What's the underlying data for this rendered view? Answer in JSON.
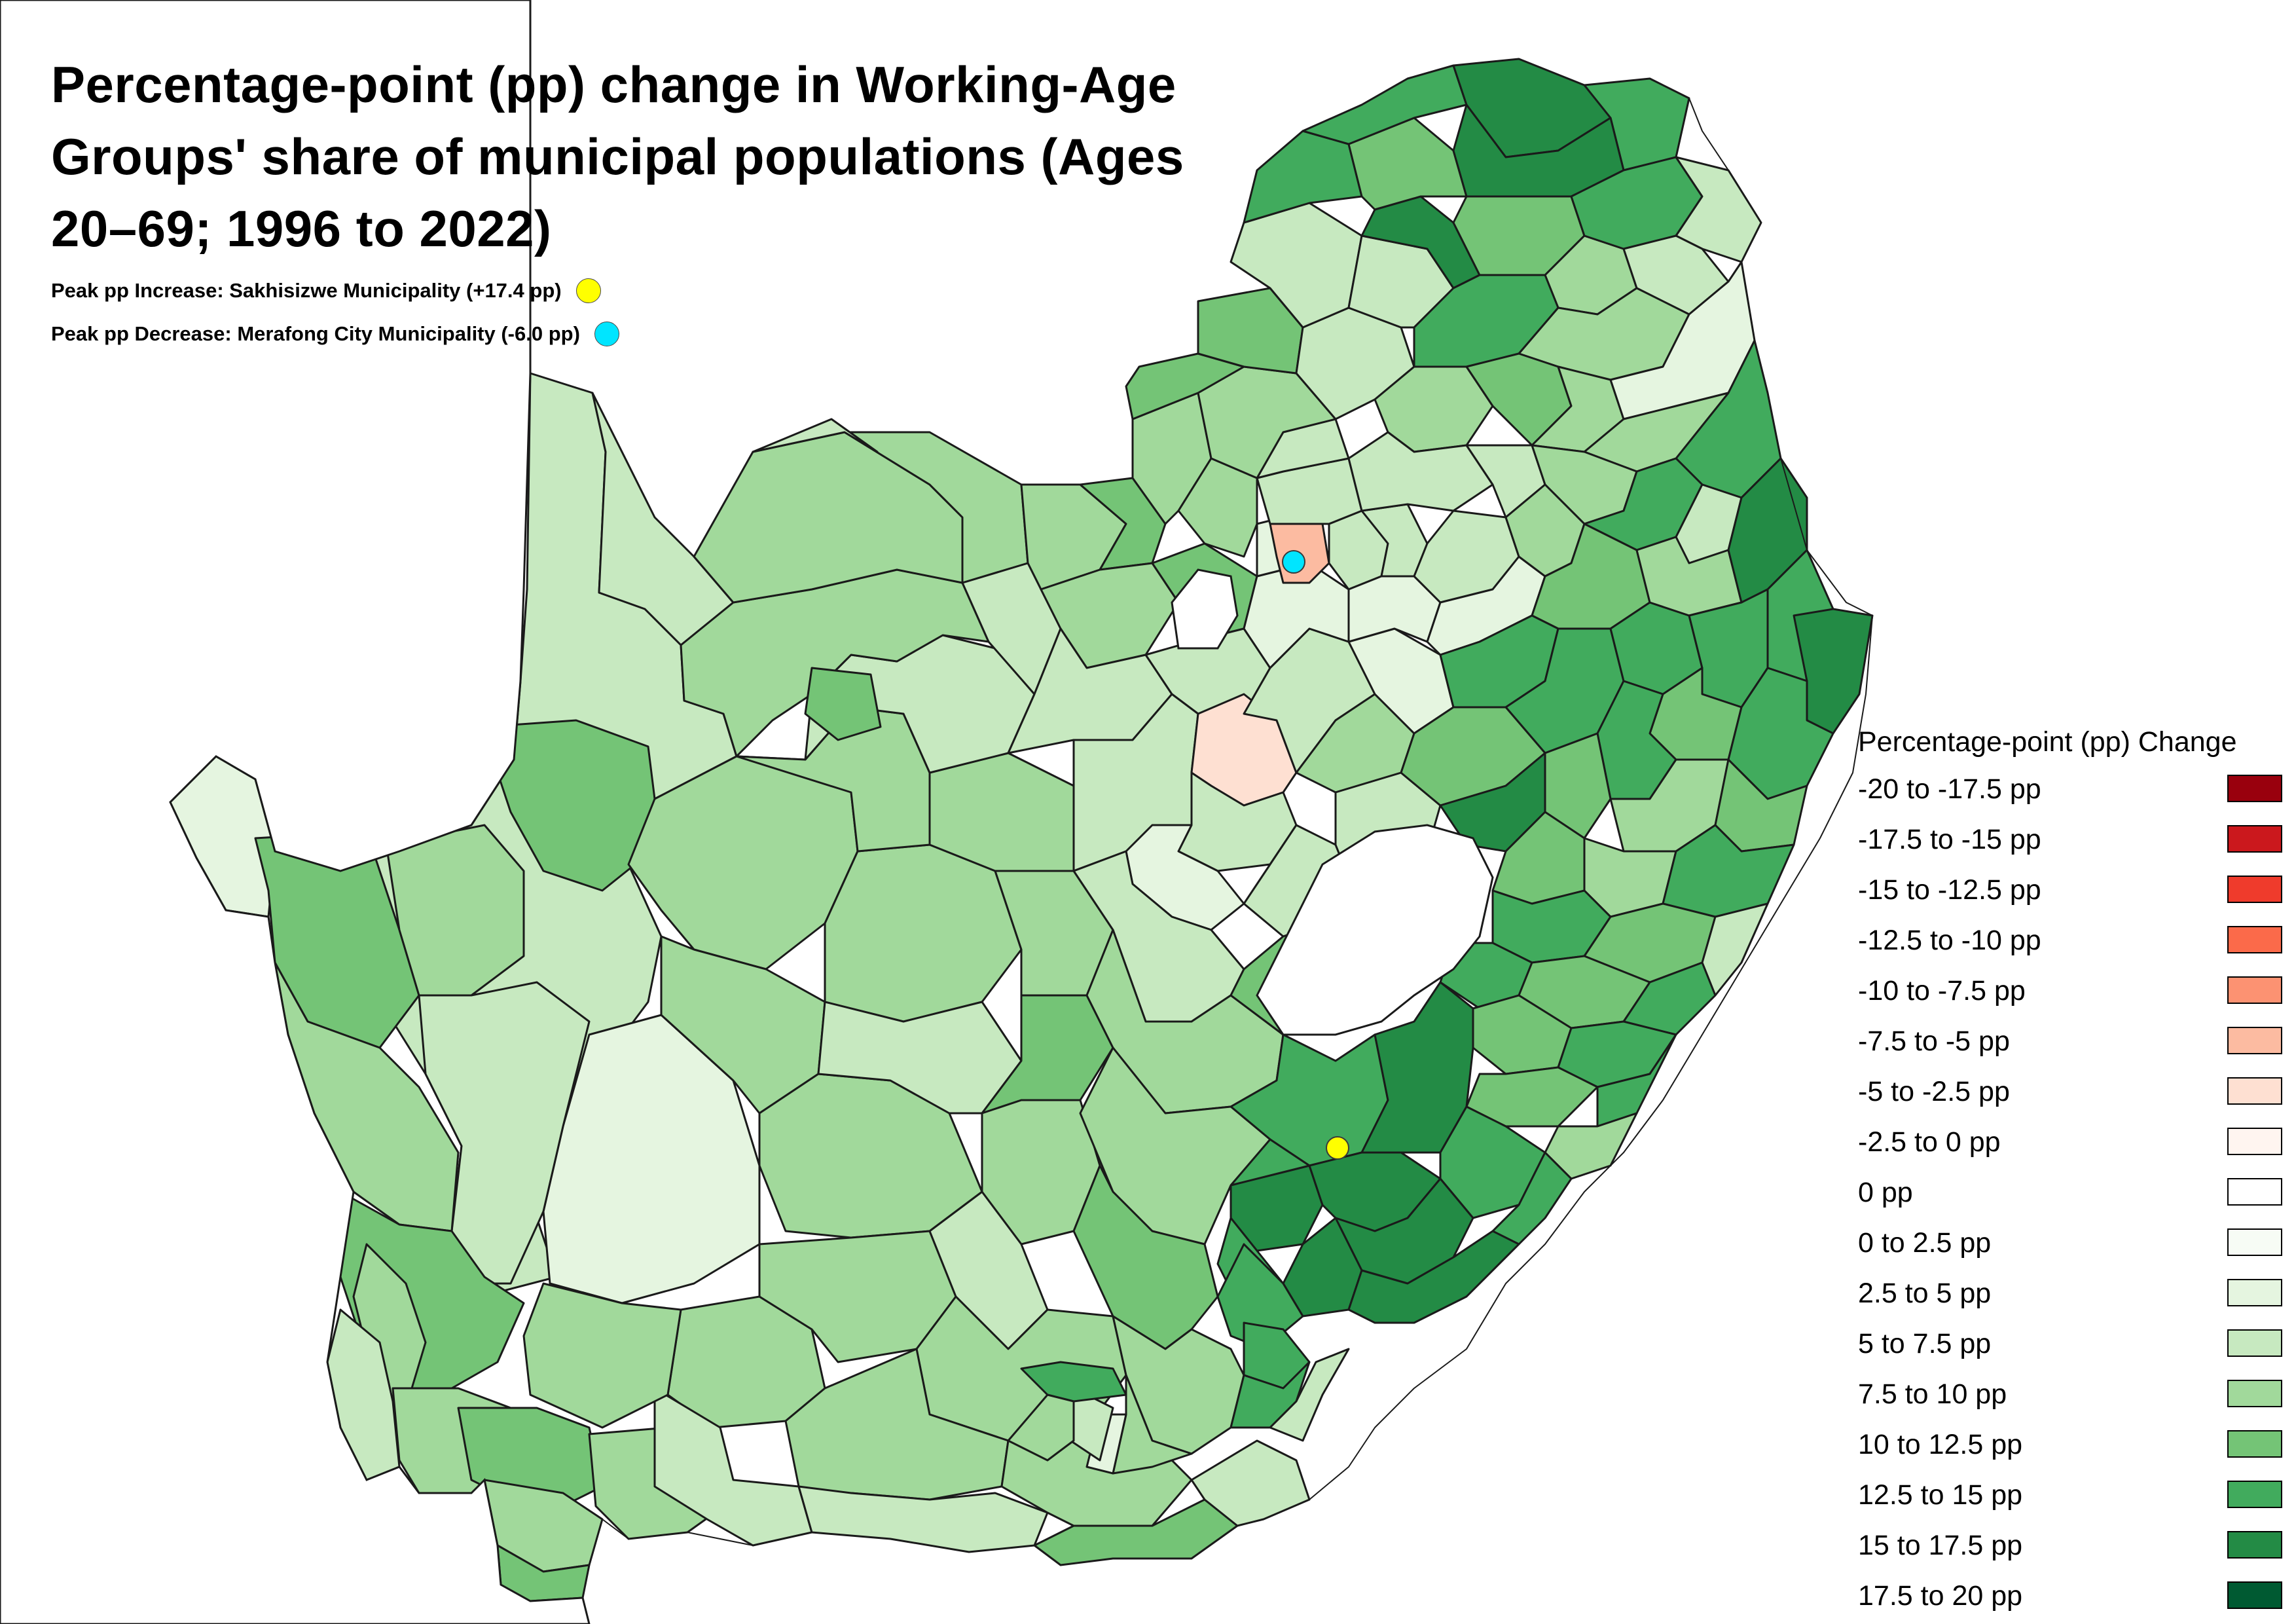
{
  "map": {
    "title": "Percentage-point (pp) change in Working-Age Groups' share of municipal populations (Ages 20–69; 1996 to 2022)",
    "highlights": [
      {
        "label": "Peak pp Increase: Sakhisizwe Municipality (+17.4 pp)",
        "municipality": "Sakhisizwe Municipality",
        "value_pp": 17.4,
        "color": "#ffff00"
      },
      {
        "label": "Peak pp Decrease: Merafong City Municipality (-6.0 pp)",
        "municipality": "Merafong City Municipality",
        "value_pp": -6.0,
        "color": "#00e5ff"
      }
    ],
    "legend": {
      "title": "Percentage-point (pp) Change",
      "items": [
        {
          "label": "-20 to -17.5 pp",
          "color": "#99000d"
        },
        {
          "label": "-17.5 to -15 pp",
          "color": "#cb181d"
        },
        {
          "label": "-15 to -12.5 pp",
          "color": "#ef3b2c"
        },
        {
          "label": "-12.5 to -10 pp",
          "color": "#fb6a4a"
        },
        {
          "label": "-10 to -7.5 pp",
          "color": "#fc9272"
        },
        {
          "label": "-7.5 to -5 pp",
          "color": "#fcbba1"
        },
        {
          "label": "-5 to -2.5 pp",
          "color": "#fee0d2"
        },
        {
          "label": "-2.5 to 0 pp",
          "color": "#fff5f0"
        },
        {
          "label": "0 pp",
          "color": "#ffffff"
        },
        {
          "label": "0 to 2.5 pp",
          "color": "#f7fcf5"
        },
        {
          "label": "2.5 to 5 pp",
          "color": "#e5f5e0"
        },
        {
          "label": "5 to 7.5 pp",
          "color": "#c7e9c0"
        },
        {
          "label": "7.5 to 10 pp",
          "color": "#a1d99b"
        },
        {
          "label": "10 to 12.5 pp",
          "color": "#74c476"
        },
        {
          "label": "12.5 to 15 pp",
          "color": "#41ab5d"
        },
        {
          "label": "15 to 17.5 pp",
          "color": "#238b45"
        },
        {
          "label": "17.5 to 20 pp",
          "color": "#005a32"
        }
      ]
    }
  }
}
